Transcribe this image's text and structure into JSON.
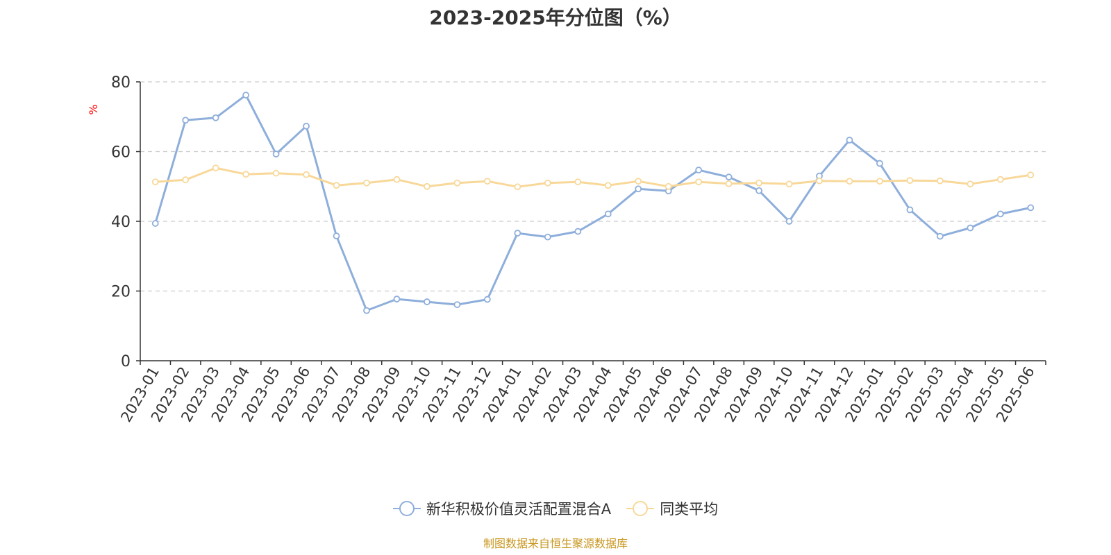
{
  "chart_data": {
    "type": "line",
    "title": "2023-2025年分位图（%）",
    "ylabel": "%",
    "xlabel": "",
    "ylim": [
      0,
      80
    ],
    "yticks": [
      0,
      20,
      40,
      60,
      80
    ],
    "grid": true,
    "legend_position": "bottom-center",
    "categories": [
      "2023-01",
      "2023-02",
      "2023-03",
      "2023-04",
      "2023-05",
      "2023-06",
      "2023-07",
      "2023-08",
      "2023-09",
      "2023-10",
      "2023-11",
      "2023-12",
      "2024-01",
      "2024-02",
      "2024-03",
      "2024-04",
      "2024-05",
      "2024-06",
      "2024-07",
      "2024-08",
      "2024-09",
      "2024-10",
      "2024-11",
      "2024-12",
      "2025-01",
      "2025-02",
      "2025-03",
      "2025-04",
      "2025-05",
      "2025-06"
    ],
    "series": [
      {
        "name": "新华积极价值灵活配置混合A",
        "color": "#8eaedb",
        "values": [
          39.4,
          69.0,
          69.7,
          76.2,
          59.3,
          67.3,
          35.8,
          14.4,
          17.7,
          16.9,
          16.1,
          17.6,
          36.6,
          35.5,
          37.1,
          42.1,
          49.3,
          48.7,
          54.7,
          52.7,
          48.8,
          40.0,
          53.0,
          63.3,
          56.6,
          43.3,
          35.7,
          38.1,
          42.1,
          43.9
        ]
      },
      {
        "name": "同类平均",
        "color": "#f8d899",
        "values": [
          51.3,
          51.9,
          55.3,
          53.5,
          53.8,
          53.4,
          50.3,
          51.0,
          52.0,
          50.0,
          51.0,
          51.5,
          49.9,
          51.0,
          51.3,
          50.3,
          51.5,
          50.0,
          51.3,
          50.8,
          51.0,
          50.7,
          51.6,
          51.5,
          51.5,
          51.7,
          51.6,
          50.7,
          52.0,
          53.3
        ]
      }
    ]
  },
  "source_note": "制图数据来自恒生聚源数据库",
  "colors": {
    "title": "#333333",
    "axis": "#333333",
    "grid": "#cccccc",
    "ylabel": "#ff0000",
    "source_note": "#c8961e"
  }
}
